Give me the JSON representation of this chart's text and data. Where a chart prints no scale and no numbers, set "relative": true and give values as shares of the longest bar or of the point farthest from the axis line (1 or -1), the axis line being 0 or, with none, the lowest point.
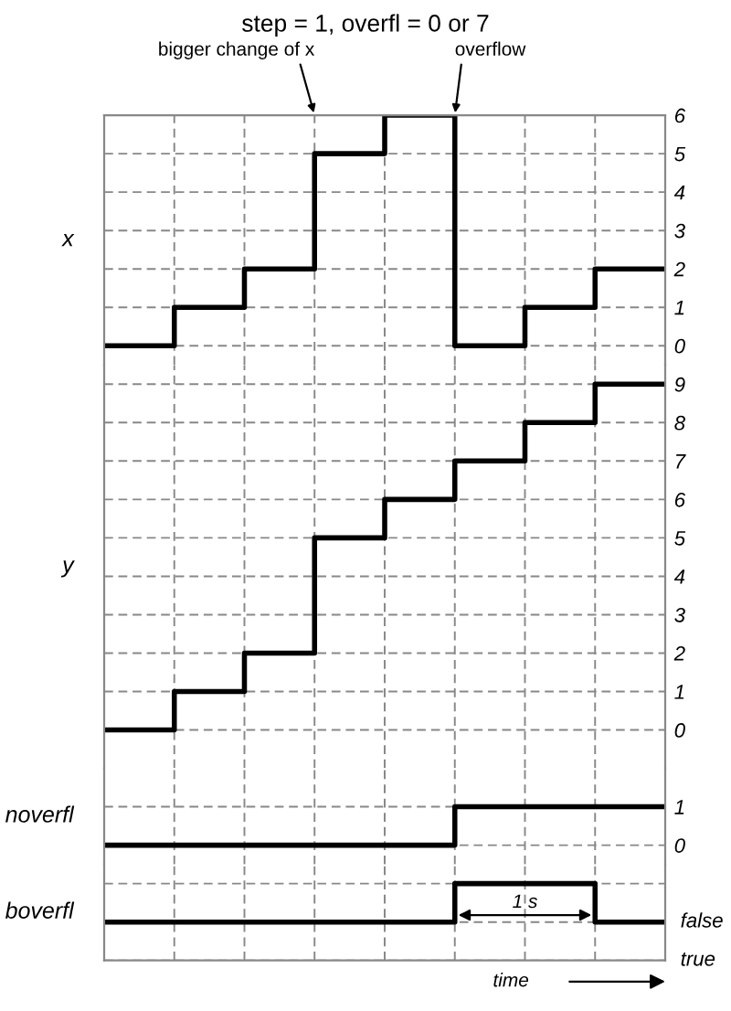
{
  "chart_data": [
    {
      "type": "step",
      "title": "step = 1, overfl = 0 or 7",
      "ylabel": "x",
      "categories": [
        null,
        null,
        null,
        null,
        null,
        null,
        null,
        null,
        null
      ],
      "series": [
        {
          "color": "#000000",
          "values": [
            0,
            1,
            2,
            5,
            6,
            0,
            1,
            2,
            2
          ]
        }
      ],
      "ylim": [
        -0.5,
        6
      ],
      "yticks": [
        0,
        1,
        2,
        3,
        4,
        5,
        6
      ],
      "grid": true,
      "tick_labels": "y",
      "annotations": [
        "bigger change of x",
        "overflow"
      ]
    },
    {
      "type": "step",
      "ylabel": "y",
      "categories": [
        null,
        null,
        null,
        null,
        null,
        null,
        null,
        null,
        null
      ],
      "series": [
        {
          "color": "#000000",
          "values": [
            0,
            1,
            2,
            5,
            6,
            7,
            8,
            9,
            9
          ]
        }
      ],
      "ylim": [
        -1,
        9.5
      ],
      "yticks": [
        0,
        1,
        2,
        3,
        4,
        5,
        6,
        7,
        8,
        9
      ],
      "grid": true,
      "tick_labels": "y"
    },
    {
      "type": "step",
      "ylabel": "noverfl",
      "categories": [
        null,
        null,
        null,
        null,
        null,
        null,
        null,
        null,
        null
      ],
      "series": [
        {
          "color": "#000000",
          "values": [
            0,
            0,
            0,
            0,
            0,
            1,
            1,
            1,
            1
          ]
        }
      ],
      "ylim": [
        -0.5,
        2
      ],
      "yticks": [
        0,
        1
      ],
      "grid": true,
      "tick_labels": "y"
    },
    {
      "type": "step",
      "ylabel": "boverfl",
      "categories": [
        null,
        null,
        null,
        null,
        null,
        null,
        null,
        null,
        null
      ],
      "series": [
        {
          "color": "#000000",
          "values": [
            0,
            0,
            0,
            0,
            0,
            1,
            1,
            0,
            0
          ]
        }
      ],
      "relative": true,
      "grid": true,
      "tick_labels": "y",
      "annotations": [
        "1 s",
        "time",
        "false",
        "true"
      ]
    }
  ]
}
